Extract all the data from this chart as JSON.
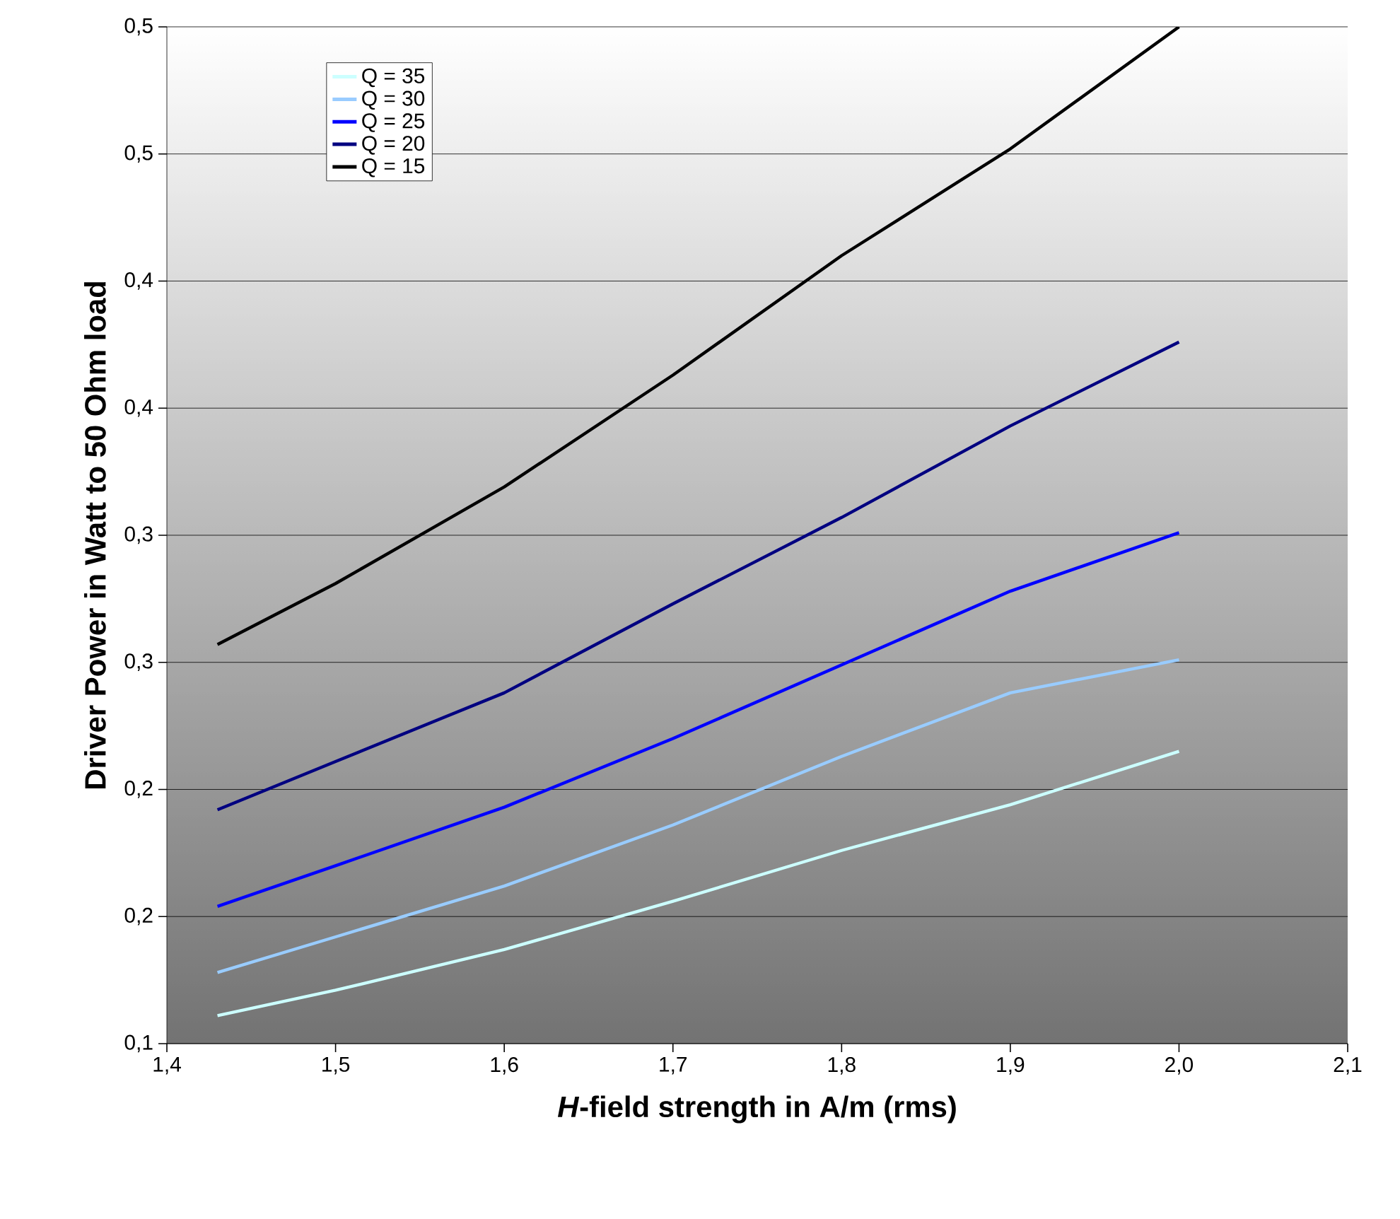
{
  "chart_data": {
    "type": "line",
    "xlabel": "*H*-field strength in A/m (rms)",
    "ylabel": "Driver Power in Watt to 50 Ohm load",
    "x": [
      1.43,
      1.5,
      1.6,
      1.7,
      1.8,
      1.9,
      2.0
    ],
    "series": [
      {
        "name": "Q = 35",
        "color": "#ccffff",
        "values": [
          0.111,
          0.121,
          0.137,
          0.156,
          0.176,
          0.194,
          0.215
        ]
      },
      {
        "name": "Q = 30",
        "color": "#99ccff",
        "values": [
          0.128,
          0.142,
          0.162,
          0.186,
          0.213,
          0.238,
          0.251
        ]
      },
      {
        "name": "Q = 25",
        "color": "#0000ff",
        "values": [
          0.154,
          0.17,
          0.193,
          0.22,
          0.249,
          0.278,
          0.301
        ]
      },
      {
        "name": "Q = 20",
        "color": "#000080",
        "values": [
          0.192,
          0.211,
          0.238,
          0.273,
          0.307,
          0.343,
          0.376
        ]
      },
      {
        "name": "Q = 15",
        "color": "#000000",
        "values": [
          0.257,
          0.281,
          0.319,
          0.363,
          0.41,
          0.452,
          0.5
        ]
      }
    ],
    "xlim": [
      1.4,
      2.1
    ],
    "ylim": [
      0.1,
      0.5
    ],
    "xticks": [
      {
        "value": 1.4,
        "label": "1,4"
      },
      {
        "value": 1.5,
        "label": "1,5"
      },
      {
        "value": 1.6,
        "label": "1,6"
      },
      {
        "value": 1.7,
        "label": "1,7"
      },
      {
        "value": 1.8,
        "label": "1,8"
      },
      {
        "value": 1.9,
        "label": "1,9"
      },
      {
        "value": 2.0,
        "label": "2,0"
      },
      {
        "value": 2.1,
        "label": "2,1"
      }
    ],
    "yticks": [
      {
        "value": 0.1,
        "label": "0,1"
      },
      {
        "value": 0.15,
        "label": "0,2"
      },
      {
        "value": 0.2,
        "label": "0,2"
      },
      {
        "value": 0.25,
        "label": "0,3"
      },
      {
        "value": 0.3,
        "label": "0,3"
      },
      {
        "value": 0.35,
        "label": "0,4"
      },
      {
        "value": 0.4,
        "label": "0,4"
      },
      {
        "value": 0.45,
        "label": "0,5"
      },
      {
        "value": 0.5,
        "label": "0,5"
      }
    ],
    "grid": "y",
    "legend": "top left",
    "marker": "none",
    "line_style": "solid"
  }
}
